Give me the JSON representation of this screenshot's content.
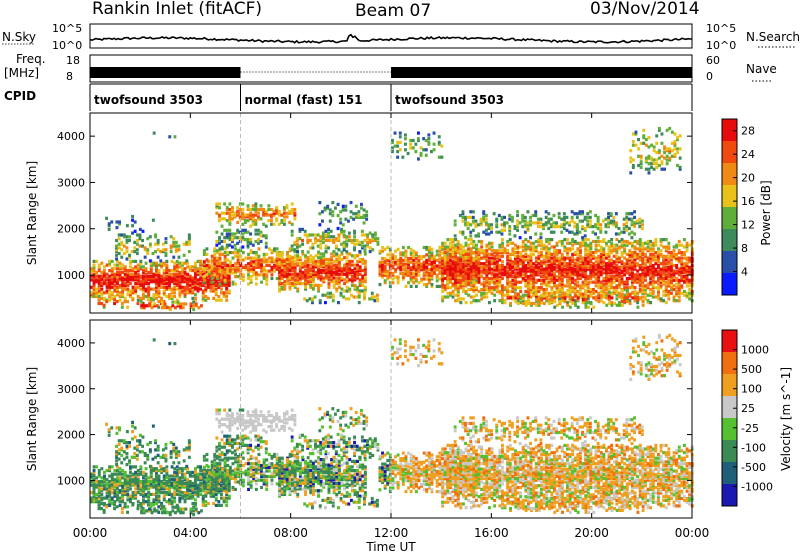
{
  "header": {
    "station": "Rankin Inlet (fitACF)",
    "beam": "Beam 07",
    "date": "03/Nov/2014"
  },
  "noise_panel": {
    "left_label": "N.Sky",
    "right_label": "N.Search",
    "left_ticks": [
      "10^5",
      "10^0"
    ],
    "right_ticks": [
      "10^5",
      "10^0"
    ]
  },
  "freq_panel": {
    "left_label_1": "Freq.",
    "left_label_2": "[MHz]",
    "left_ticks": [
      "8",
      "18"
    ],
    "right_label": "Nave",
    "right_ticks": [
      "60",
      "0"
    ]
  },
  "cpid_panel": {
    "label": "CPID",
    "segments": [
      {
        "name": "twofsound 3503",
        "start_h": 0,
        "end_h": 6
      },
      {
        "name": "normal (fast) 151",
        "start_h": 6,
        "end_h": 12
      },
      {
        "name": "twofsound 3503",
        "start_h": 12,
        "end_h": 24
      }
    ]
  },
  "chart_data": [
    {
      "type": "heatmap",
      "title": "Power",
      "ylabel": "Slant Range [km]",
      "y_ticks": [
        "1000",
        "2000",
        "3000",
        "4000"
      ],
      "ylim": [
        180,
        4500
      ],
      "xlim": [
        0,
        24
      ],
      "colorbar": {
        "label": "Power [dB]",
        "ticks": [
          "4",
          "8",
          "12",
          "16",
          "20",
          "24",
          "28"
        ],
        "range": [
          0,
          30
        ]
      }
    },
    {
      "type": "heatmap",
      "title": "Velocity",
      "ylabel": "Slant Range [km]",
      "y_ticks": [
        "1000",
        "2000",
        "3000",
        "4000"
      ],
      "ylim": [
        180,
        4500
      ],
      "xlim": [
        0,
        24
      ],
      "colorbar": {
        "label": "Velocity [m s^-1]",
        "ticks": [
          "1000",
          "500",
          "100",
          "25",
          "-25",
          "-100",
          "-500",
          "-1000"
        ]
      }
    }
  ],
  "x_axis": {
    "label": "Time UT",
    "ticks": [
      "00:00",
      "04:00",
      "08:00",
      "12:00",
      "16:00",
      "20:00",
      "00:00"
    ]
  },
  "colors": {
    "power_scale": [
      "#0a1bff",
      "#2a4fa8",
      "#3f8a5a",
      "#5fae3a",
      "#e8c21a",
      "#f08a14",
      "#f04a10",
      "#e80b0b"
    ],
    "velocity_scale": [
      "#1a1ab0",
      "#1f5f7a",
      "#3a8a55",
      "#55c030",
      "#c8c8c8",
      "#f0a020",
      "#f07010",
      "#e81010"
    ]
  }
}
